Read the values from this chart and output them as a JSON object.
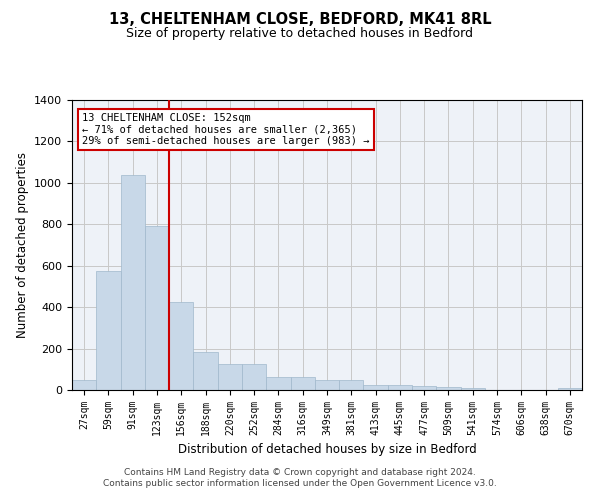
{
  "title1": "13, CHELTENHAM CLOSE, BEDFORD, MK41 8RL",
  "title2": "Size of property relative to detached houses in Bedford",
  "xlabel": "Distribution of detached houses by size in Bedford",
  "ylabel": "Number of detached properties",
  "categories": [
    "27sqm",
    "59sqm",
    "91sqm",
    "123sqm",
    "156sqm",
    "188sqm",
    "220sqm",
    "252sqm",
    "284sqm",
    "316sqm",
    "349sqm",
    "381sqm",
    "413sqm",
    "445sqm",
    "477sqm",
    "509sqm",
    "541sqm",
    "574sqm",
    "606sqm",
    "638sqm",
    "670sqm"
  ],
  "values": [
    50,
    575,
    1040,
    790,
    425,
    185,
    125,
    125,
    65,
    65,
    50,
    50,
    25,
    25,
    20,
    15,
    10,
    0,
    0,
    0,
    10
  ],
  "bar_color": "#c8d8e8",
  "bar_edge_color": "#a0b8cc",
  "grid_color": "#c8c8c8",
  "bg_color": "#eef2f8",
  "red_line_x": 4.0,
  "annotation_text": "13 CHELTENHAM CLOSE: 152sqm\n← 71% of detached houses are smaller (2,365)\n29% of semi-detached houses are larger (983) →",
  "annotation_box_color": "#ffffff",
  "annotation_box_edge": "#cc0000",
  "footnote": "Contains HM Land Registry data © Crown copyright and database right 2024.\nContains public sector information licensed under the Open Government Licence v3.0.",
  "ylim": [
    0,
    1400
  ],
  "yticks": [
    0,
    200,
    400,
    600,
    800,
    1000,
    1200,
    1400
  ]
}
